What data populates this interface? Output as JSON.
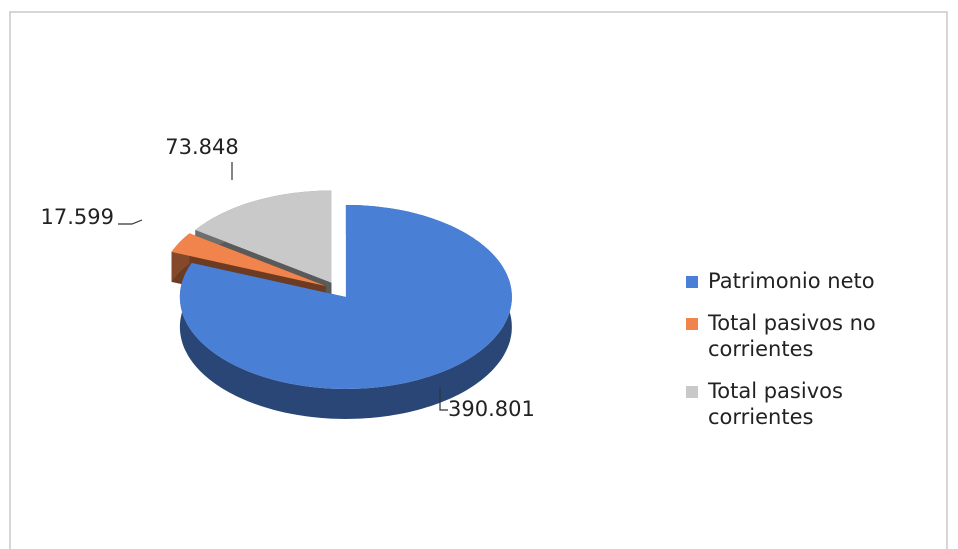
{
  "chart_data": {
    "type": "pie3d",
    "categories": [
      "Patrimonio neto",
      "Total pasivos no corrientes",
      "Total pasivos corrientes"
    ],
    "values": [
      390801,
      17599,
      73848
    ],
    "value_labels": [
      "390.801",
      "17.599",
      "73.848"
    ],
    "colors": [
      "#4a7fd6",
      "#f0844c",
      "#c9c9c9"
    ],
    "legend": "right"
  }
}
